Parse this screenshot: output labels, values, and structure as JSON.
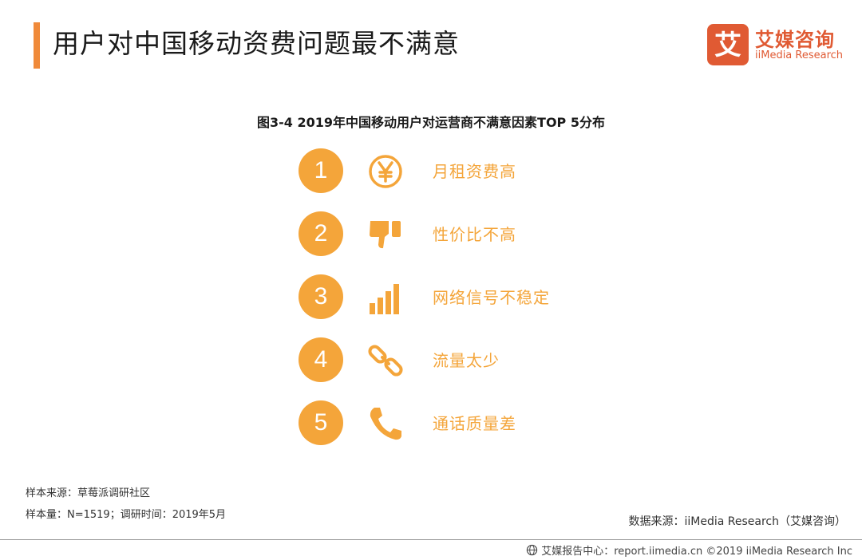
{
  "header": {
    "title": "用户对中国移动资费问题最不满意",
    "accent_color": "#f08a3a"
  },
  "logo": {
    "mark_char": "艾",
    "name_cn": "艾媒咨询",
    "name_en": "iiMedia Research",
    "brand_color": "#e05a33"
  },
  "figure": {
    "title": "图3-4 2019年中国移动用户对运营商不满意因素TOP 5分布",
    "highlight_color": "#f4a53a",
    "factors": [
      {
        "rank": "1",
        "icon": "yen-coin-icon",
        "label": "月租资费高"
      },
      {
        "rank": "2",
        "icon": "thumbs-down-icon",
        "label": "性价比不高"
      },
      {
        "rank": "3",
        "icon": "signal-bars-icon",
        "label": "网络信号不稳定"
      },
      {
        "rank": "4",
        "icon": "chain-link-icon",
        "label": "流量太少"
      },
      {
        "rank": "5",
        "icon": "phone-handset-icon",
        "label": "通话质量差"
      }
    ]
  },
  "notes": {
    "sample_source": "样本来源：草莓派调研社区",
    "sample_size": "样本量：N=1519；调研时间：2019年5月",
    "data_source": "数据来源：iiMedia Research（艾媒咨询）"
  },
  "footer": {
    "text": "艾媒报告中心：report.iimedia.cn  ©2019  iiMedia Research  Inc",
    "icon": "globe-icon"
  }
}
